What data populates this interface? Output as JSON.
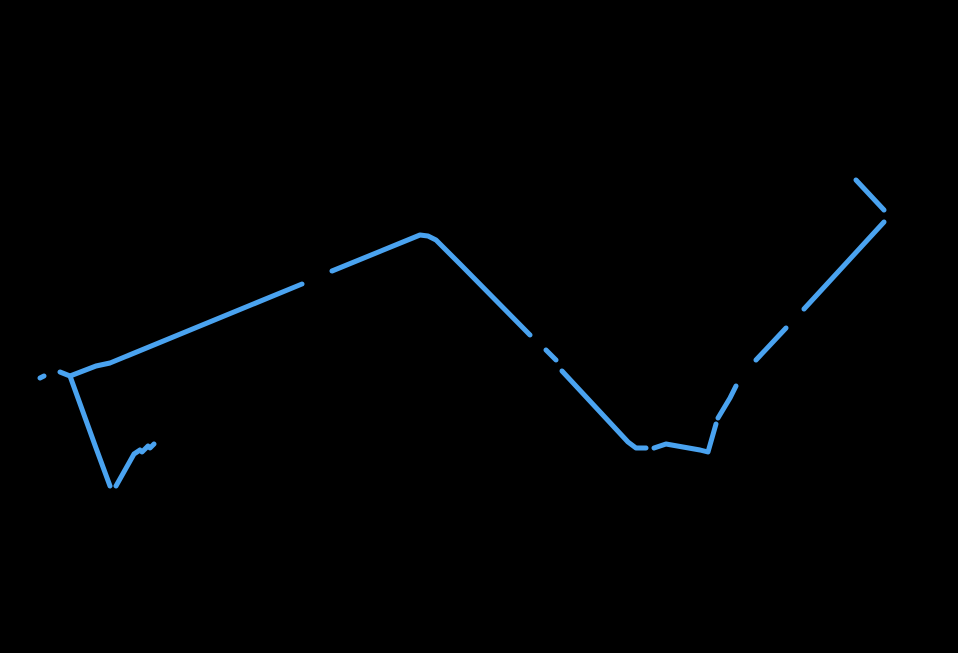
{
  "map": {
    "background_color": "#000000",
    "route_color": "#4aa3f0",
    "gap_color": "#000000",
    "route_segments": [
      {
        "id": "segment-west-spur"
      },
      {
        "id": "segment-north-span"
      },
      {
        "id": "segment-central-descent"
      },
      {
        "id": "segment-south-dip"
      },
      {
        "id": "segment-east-climb"
      },
      {
        "id": "segment-northeast-tip"
      }
    ]
  }
}
